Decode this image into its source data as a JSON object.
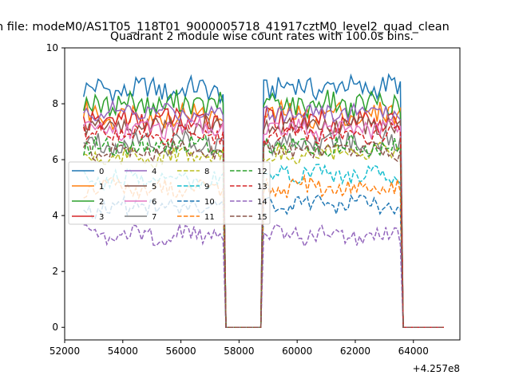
{
  "chart_data": {
    "type": "line",
    "suptitle": "n file: modeM0/AS1T05_118T01_9000005718_41917cztM0_level2_quad_clean",
    "title": "Quadrant 2 module wise count rates with 100.0s bins.",
    "xlabel": "",
    "ylabel": "",
    "offset_text": "+4.257e8",
    "xlim": [
      52000,
      65600
    ],
    "ylim": [
      -0.45,
      10.0
    ],
    "xticks": [
      52000,
      54000,
      56000,
      58000,
      60000,
      62000,
      64000
    ],
    "xtick_labels": [
      "52000",
      "54000",
      "56000",
      "58000",
      "60000",
      "62000",
      "64000"
    ],
    "yticks": [
      0,
      2,
      4,
      6,
      8,
      10
    ],
    "ytick_labels": [
      "0",
      "2",
      "4",
      "6",
      "8",
      "10"
    ],
    "grid": false,
    "legend": {
      "placement": "center-left",
      "ncol": 4
    },
    "time_range": {
      "start": 52650,
      "gap_start": 57500,
      "gap_end": 58750,
      "end": 65050,
      "step": 100
    },
    "active_segments": [
      [
        52650,
        57450
      ],
      [
        58850,
        63550
      ]
    ],
    "series": [
      {
        "name": "0",
        "color": "#1f77b4",
        "dash": "solid",
        "level": 8.5,
        "noise": 0.25,
        "level2": 8.6
      },
      {
        "name": "1",
        "color": "#ff7f0e",
        "dash": "solid",
        "level": 7.6,
        "noise": 0.25,
        "level2": 7.6
      },
      {
        "name": "2",
        "color": "#2ca02c",
        "dash": "solid",
        "level": 8.0,
        "noise": 0.25,
        "level2": 8.0
      },
      {
        "name": "3",
        "color": "#d62728",
        "dash": "solid",
        "level": 7.4,
        "noise": 0.25,
        "level2": 7.4
      },
      {
        "name": "4",
        "color": "#9467bd",
        "dash": "solid",
        "level": 7.7,
        "noise": 0.2,
        "level2": 7.7
      },
      {
        "name": "5",
        "color": "#8c564b",
        "dash": "solid",
        "level": 7.2,
        "noise": 0.2,
        "level2": 7.2
      },
      {
        "name": "6",
        "color": "#e377c2",
        "dash": "solid",
        "level": 7.1,
        "noise": 0.2,
        "level2": 7.1
      },
      {
        "name": "7",
        "color": "#7f7f7f",
        "dash": "solid",
        "level": 6.6,
        "noise": 0.25,
        "level2": 6.6
      },
      {
        "name": "8",
        "color": "#bcbd22",
        "dash": "dashed",
        "level": 6.1,
        "noise": 0.2,
        "level2": 6.2
      },
      {
        "name": "9",
        "color": "#17becf",
        "dash": "dashed",
        "level": 5.3,
        "noise": 0.2,
        "level2": 5.5
      },
      {
        "name": "10",
        "color": "#1f77b4",
        "dash": "dashed",
        "level": 4.3,
        "noise": 0.2,
        "level2": 4.4
      },
      {
        "name": "11",
        "color": "#ff7f0e",
        "dash": "dashed",
        "level": 5.0,
        "noise": 0.2,
        "level2": 5.0
      },
      {
        "name": "12",
        "color": "#2ca02c",
        "dash": "dashed",
        "level": 6.5,
        "noise": 0.2,
        "level2": 6.5
      },
      {
        "name": "13",
        "color": "#d62728",
        "dash": "dashed",
        "level": 6.9,
        "noise": 0.2,
        "level2": 6.9
      },
      {
        "name": "14",
        "color": "#9467bd",
        "dash": "dashed",
        "level": 3.3,
        "noise": 0.2,
        "level2": 3.3
      },
      {
        "name": "15",
        "color": "#8c564b",
        "dash": "dashed",
        "level": 6.3,
        "noise": 0.2,
        "level2": 6.3
      }
    ]
  }
}
